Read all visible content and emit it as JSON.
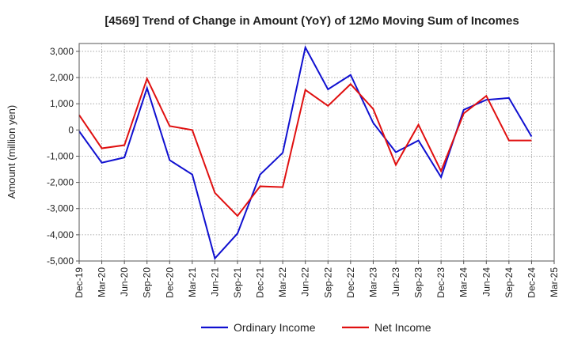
{
  "chart_data": {
    "type": "line",
    "title": "[4569]  Trend of Change in Amount (YoY) of 12Mo Moving Sum of Incomes",
    "ylabel": "Amount (million yen)",
    "xlabel": "",
    "ylim": [
      -5000,
      3300
    ],
    "yticks": [
      3000,
      2000,
      1000,
      0,
      -1000,
      -2000,
      -3000,
      -4000,
      -5000
    ],
    "ytick_labels": [
      "3,000",
      "2,000",
      "1,000",
      "0",
      "-1,000",
      "-2,000",
      "-3,000",
      "-4,000",
      "-5,000"
    ],
    "x_tick_labels": [
      "Dec-19",
      "Mar-20",
      "Jun-20",
      "Sep-20",
      "Dec-20",
      "Mar-21",
      "Jun-21",
      "Sep-21",
      "Dec-21",
      "Mar-22",
      "Jun-22",
      "Sep-22",
      "Dec-22",
      "Mar-23",
      "Jun-23",
      "Sep-23",
      "Dec-23",
      "Mar-24",
      "Jun-24",
      "Sep-24",
      "Dec-24",
      "Mar-25"
    ],
    "grid": true,
    "legend_position": "bottom",
    "series": [
      {
        "name": "Ordinary Income",
        "color": "#1010d0",
        "values": [
          -50,
          -1250,
          -1050,
          1600,
          -1150,
          -1700,
          -4900,
          -3950,
          -1700,
          -870,
          3150,
          1550,
          2100,
          270,
          -850,
          -400,
          -1800,
          770,
          1150,
          1220,
          -250
        ]
      },
      {
        "name": "Net Income",
        "color": "#e01010",
        "values": [
          570,
          -700,
          -580,
          1960,
          150,
          0,
          -2400,
          -3280,
          -2150,
          -2180,
          1530,
          920,
          1750,
          800,
          -1330,
          200,
          -1570,
          630,
          1300,
          -400,
          -400
        ]
      }
    ]
  }
}
